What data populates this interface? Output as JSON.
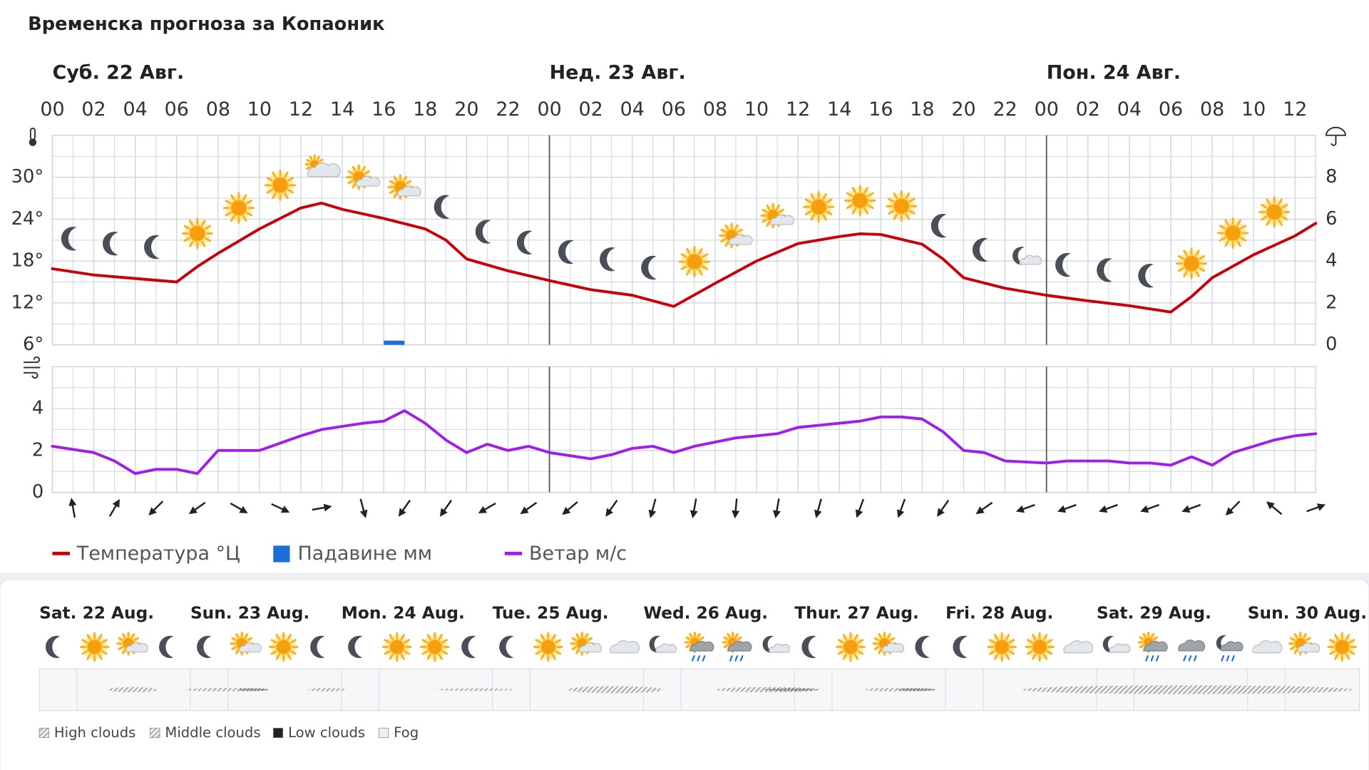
{
  "title": "Временска прогноза за Копаоник",
  "chart_data": [
    {
      "type": "line",
      "xlim": [
        0,
        61
      ],
      "xticks": [
        {
          "value": 0,
          "label": "00"
        },
        {
          "value": 2,
          "label": "02"
        },
        {
          "value": 4,
          "label": "04"
        },
        {
          "value": 6,
          "label": "06"
        },
        {
          "value": 8,
          "label": "08"
        },
        {
          "value": 10,
          "label": "10"
        },
        {
          "value": 12,
          "label": "12"
        },
        {
          "value": 14,
          "label": "14"
        },
        {
          "value": 16,
          "label": "16"
        },
        {
          "value": 18,
          "label": "18"
        },
        {
          "value": 20,
          "label": "20"
        },
        {
          "value": 22,
          "label": "22"
        },
        {
          "value": 24,
          "label": "00"
        },
        {
          "value": 26,
          "label": "02"
        },
        {
          "value": 28,
          "label": "04"
        },
        {
          "value": 30,
          "label": "06"
        },
        {
          "value": 32,
          "label": "08"
        },
        {
          "value": 34,
          "label": "10"
        },
        {
          "value": 36,
          "label": "12"
        },
        {
          "value": 38,
          "label": "14"
        },
        {
          "value": 40,
          "label": "16"
        },
        {
          "value": 42,
          "label": "18"
        },
        {
          "value": 44,
          "label": "20"
        },
        {
          "value": 46,
          "label": "22"
        },
        {
          "value": 48,
          "label": "00"
        },
        {
          "value": 50,
          "label": "02"
        },
        {
          "value": 52,
          "label": "04"
        },
        {
          "value": 54,
          "label": "06"
        },
        {
          "value": 56,
          "label": "08"
        },
        {
          "value": 58,
          "label": "10"
        },
        {
          "value": 60,
          "label": "12"
        }
      ],
      "day_ticks": [
        {
          "value": 0,
          "label": "Суб. 22 Авг."
        },
        {
          "value": 24,
          "label": "Нед. 23 Авг."
        },
        {
          "value": 48,
          "label": "Пон. 24 Авг."
        }
      ],
      "ylim": [
        6,
        36
      ],
      "yticks": [
        {
          "value": 6,
          "label": "6°"
        },
        {
          "value": 12,
          "label": "12°"
        },
        {
          "value": 18,
          "label": "18°"
        },
        {
          "value": 24,
          "label": "24°"
        },
        {
          "value": 30,
          "label": "30°"
        }
      ],
      "y2lim": [
        0,
        10
      ],
      "y2ticks": [
        0,
        2,
        4,
        6,
        8
      ],
      "grid": true,
      "series": [
        {
          "name": "Температура °Ц",
          "color": "#c8000a",
          "x": [
            0,
            2,
            4,
            6,
            7,
            8,
            10,
            12,
            13,
            14,
            16,
            18,
            19,
            20,
            22,
            24,
            26,
            28,
            30,
            32,
            34,
            36,
            38,
            39,
            40,
            42,
            43,
            44,
            46,
            48,
            50,
            52,
            54,
            55,
            56,
            58,
            60,
            61
          ],
          "values": [
            16.9,
            16.0,
            15.5,
            15.0,
            17.2,
            19.1,
            22.6,
            25.6,
            26.3,
            25.4,
            24.1,
            22.6,
            21.0,
            18.3,
            16.6,
            15.2,
            13.9,
            13.1,
            11.5,
            14.8,
            18.0,
            20.5,
            21.5,
            21.9,
            21.8,
            20.4,
            18.3,
            15.6,
            14.1,
            13.1,
            12.3,
            11.6,
            10.7,
            12.9,
            15.6,
            18.9,
            21.6,
            23.4
          ]
        },
        {
          "name": "Падавине мм",
          "color": "#1a6fd8",
          "type": "bar",
          "axis": "y2",
          "x": [
            16.5
          ],
          "values": [
            0.2
          ]
        }
      ],
      "icons": {
        "x": [
          1,
          3,
          5,
          7,
          9,
          11,
          13,
          15,
          17,
          19,
          21,
          23,
          25,
          27,
          29,
          31,
          33,
          35,
          37,
          39,
          41,
          43,
          45,
          47,
          49,
          51,
          53,
          55,
          57,
          59
        ],
        "types": [
          "moon",
          "moon",
          "moon",
          "sun",
          "sun",
          "sun",
          "cloudsun",
          "partly",
          "partly",
          "moon",
          "moon",
          "moon",
          "moon",
          "moon",
          "moon",
          "sun",
          "partly",
          "partly",
          "sun",
          "sun",
          "sun",
          "moon",
          "moon",
          "mooncloud",
          "moon",
          "moon",
          "moon",
          "sun",
          "sun",
          "sun"
        ]
      }
    },
    {
      "type": "line",
      "xlim": [
        0,
        61
      ],
      "xticks": [
        0,
        2,
        4,
        6,
        8,
        10,
        12,
        14,
        16,
        18,
        20,
        22,
        24,
        26,
        28,
        30,
        32,
        34,
        36,
        38,
        40,
        42,
        44,
        46,
        48,
        50,
        52,
        54,
        56,
        58,
        60
      ],
      "ylim": [
        0,
        6
      ],
      "yticks": [
        0,
        2,
        4
      ],
      "grid": true,
      "series": [
        {
          "name": "Ветар м/с",
          "color": "#a21de8",
          "x": [
            0,
            2,
            3,
            4,
            5,
            6,
            7,
            8,
            10,
            12,
            13,
            15,
            16,
            17,
            18,
            19,
            20,
            21,
            22,
            23,
            24,
            26,
            27,
            28,
            29,
            30,
            31,
            32,
            33,
            34,
            35,
            36,
            37,
            38,
            39,
            40,
            41,
            42,
            43,
            44,
            45,
            46,
            48,
            49,
            51,
            52,
            53,
            54,
            55,
            56,
            57,
            58,
            59,
            60,
            61
          ],
          "values": [
            2.2,
            1.9,
            1.5,
            0.9,
            1.1,
            1.1,
            0.9,
            2.0,
            2.0,
            2.7,
            3.0,
            3.3,
            3.4,
            3.9,
            3.3,
            2.5,
            1.9,
            2.3,
            2.0,
            2.2,
            1.9,
            1.6,
            1.8,
            2.1,
            2.2,
            1.9,
            2.2,
            2.4,
            2.6,
            2.7,
            2.8,
            3.1,
            3.2,
            3.3,
            3.4,
            3.6,
            3.6,
            3.5,
            2.9,
            2.0,
            1.9,
            1.5,
            1.4,
            1.5,
            1.5,
            1.4,
            1.4,
            1.3,
            1.7,
            1.3,
            1.9,
            2.2,
            2.5,
            2.7,
            2.8
          ]
        }
      ],
      "wind_direction": {
        "x": [
          1,
          3,
          5,
          7,
          9,
          11,
          13,
          15,
          17,
          19,
          21,
          23,
          25,
          27,
          29,
          31,
          33,
          35,
          37,
          39,
          41,
          43,
          45,
          47,
          49,
          51,
          53,
          55,
          57,
          59,
          61
        ],
        "values": [
          350,
          30,
          225,
          235,
          120,
          115,
          80,
          165,
          215,
          215,
          240,
          235,
          230,
          215,
          195,
          190,
          185,
          190,
          195,
          200,
          200,
          215,
          235,
          250,
          250,
          250,
          250,
          250,
          225,
          310,
          70
        ]
      }
    }
  ],
  "forecast": {
    "days": [
      "Sat. 22 Aug.",
      "Sun. 23 Aug.",
      "Mon. 24 Aug.",
      "Tue. 25 Aug.",
      "Wed. 26 Aug.",
      "Thur. 27 Aug.",
      "Fri. 28 Aug.",
      "Sat. 29 Aug.",
      "Sun. 30 Aug."
    ],
    "icons": [
      "moon",
      "sun",
      "partly",
      "moon",
      "moon",
      "partly",
      "sun",
      "moon",
      "moon",
      "sun",
      "sun",
      "moon",
      "moon",
      "sun",
      "partly",
      "cloud",
      "mooncloud",
      "sunrain",
      "sunrain",
      "mooncloud",
      "moon",
      "sun",
      "partly",
      "moon",
      "moon",
      "sun",
      "sun",
      "cloud",
      "mooncloud",
      "sunrain",
      "rain",
      "moonrain",
      "cloud",
      "partly",
      "sun"
    ],
    "legend": [
      "High clouds",
      "Middle clouds",
      "Low clouds",
      "Fog"
    ]
  }
}
